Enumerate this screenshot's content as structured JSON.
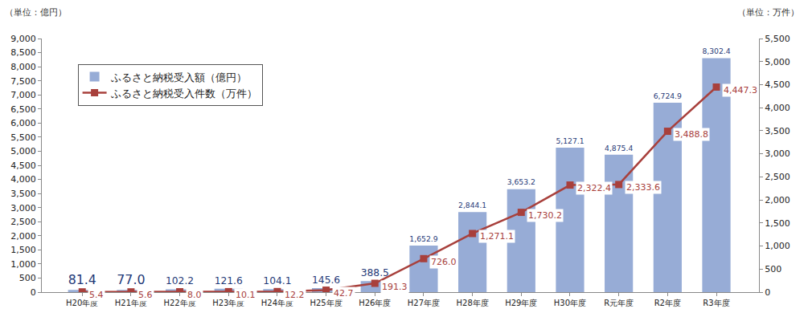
{
  "chart_data": {
    "type": "bar",
    "ylabel": "（単位：億円）",
    "y2label": "（単位：万件）",
    "categories": [
      "H20年度",
      "H21年度",
      "H22年度",
      "H23年度",
      "H24年度",
      "H25年度",
      "H26年度",
      "H27年度",
      "H28年度",
      "H29年度",
      "H30年度",
      "R元年度",
      "R2年度",
      "R3年度"
    ],
    "series": [
      {
        "name": "ふるさと納税受入額（億円）",
        "type": "bar",
        "color": "#97acd6",
        "values": [
          81.4,
          77.0,
          102.2,
          121.6,
          104.1,
          145.6,
          388.5,
          1652.9,
          2844.1,
          3653.2,
          5127.1,
          4875.4,
          6724.9,
          8302.4
        ],
        "value_labels": [
          "81.4",
          "77.0",
          "102.2",
          "121.6",
          "104.1",
          "145.6",
          "388.5",
          "1,652.9",
          "2,844.1",
          "3,653.2",
          "5,127.1",
          "4,875.4",
          "6,724.9",
          "8,302.4"
        ]
      },
      {
        "name": "ふるさと納税受入件数（万件）",
        "type": "line",
        "axis": "y2",
        "color": "#a8403c",
        "marker": "square",
        "line_style": "solid",
        "values": [
          5.4,
          5.6,
          8.0,
          10.1,
          12.2,
          42.7,
          191.3,
          726.0,
          1271.1,
          1730.2,
          2322.4,
          2333.6,
          3488.8,
          4447.3
        ],
        "value_labels": [
          "5.4",
          "5.6",
          "8.0",
          "10.1",
          "12.2",
          "42.7",
          "191.3",
          "726.0",
          "1,271.1",
          "1,730.2",
          "2,322.4",
          "2,333.6",
          "3,488.8",
          "4,447.3"
        ]
      }
    ],
    "ylim": [
      0,
      9000
    ],
    "yticks": [
      0,
      500,
      {
        "value": 1000,
        "label": "1,000"
      },
      {
        "value": 1500,
        "label": "1,500"
      },
      {
        "value": 2000,
        "label": "2,000"
      },
      {
        "value": 2500,
        "label": "2,500"
      },
      {
        "value": 3000,
        "label": "3,000"
      },
      {
        "value": 3500,
        "label": "3,500"
      },
      {
        "value": 4000,
        "label": "4,000"
      },
      {
        "value": 4500,
        "label": "4,500"
      },
      {
        "value": 5000,
        "label": "5,000"
      },
      {
        "value": 5500,
        "label": "5,500"
      },
      {
        "value": 6000,
        "label": "6,000"
      },
      {
        "value": 6500,
        "label": "6,500"
      },
      {
        "value": 7000,
        "label": "7,000"
      },
      {
        "value": 7500,
        "label": "7,500"
      },
      {
        "value": 8000,
        "label": "8,000"
      },
      {
        "value": 8500,
        "label": "8,500"
      },
      {
        "value": 9000,
        "label": "9,000"
      }
    ],
    "y2lim": [
      0,
      5500
    ],
    "y2ticks": [
      0,
      500,
      {
        "value": 1000,
        "label": "1,000"
      },
      {
        "value": 1500,
        "label": "1,500"
      },
      {
        "value": 2000,
        "label": "2,000"
      },
      {
        "value": 2500,
        "label": "2,500"
      },
      {
        "value": 3000,
        "label": "3,000"
      },
      {
        "value": 3500,
        "label": "3,500"
      },
      {
        "value": 4000,
        "label": "4,000"
      },
      {
        "value": 4500,
        "label": "4,500"
      },
      {
        "value": 5000,
        "label": "5,000"
      },
      {
        "value": 5500,
        "label": "5,500"
      }
    ],
    "grid": false,
    "legend": "top left",
    "data_labels": true
  }
}
